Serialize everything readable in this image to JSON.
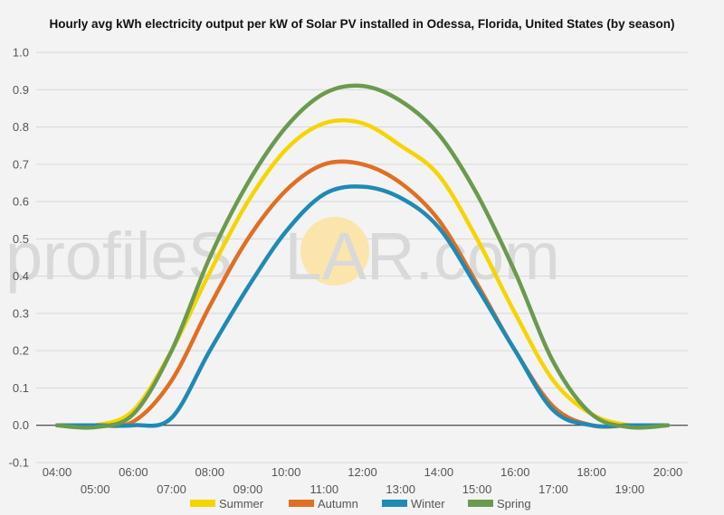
{
  "chart_data": {
    "type": "line",
    "title": "Hourly avg kWh electricity output per kW of Solar PV installed in Odessa, Florida, United States (by season)",
    "xlabel": "",
    "ylabel": "",
    "categories": [
      "04:00",
      "05:00",
      "06:00",
      "07:00",
      "08:00",
      "09:00",
      "10:00",
      "11:00",
      "12:00",
      "13:00",
      "14:00",
      "15:00",
      "16:00",
      "17:00",
      "18:00",
      "19:00",
      "20:00"
    ],
    "ylim": [
      -0.1,
      1.0
    ],
    "yticks": [
      "-0.1",
      "0.0",
      "0.1",
      "0.2",
      "0.3",
      "0.4",
      "0.5",
      "0.6",
      "0.7",
      "0.8",
      "0.9",
      "1.0"
    ],
    "grid": true,
    "legend_position": "bottom",
    "series": [
      {
        "name": "Summer",
        "color": "#f5d500",
        "values": [
          0.0,
          0.0,
          0.04,
          0.2,
          0.41,
          0.6,
          0.74,
          0.81,
          0.81,
          0.75,
          0.67,
          0.5,
          0.3,
          0.12,
          0.03,
          0.0,
          0.0
        ]
      },
      {
        "name": "Autumn",
        "color": "#e06f23",
        "values": [
          0.0,
          0.0,
          0.01,
          0.12,
          0.32,
          0.5,
          0.63,
          0.7,
          0.7,
          0.65,
          0.55,
          0.38,
          0.2,
          0.05,
          0.0,
          0.0,
          0.0
        ]
      },
      {
        "name": "Winter",
        "color": "#1f8ab4",
        "values": [
          0.0,
          0.0,
          0.0,
          0.02,
          0.2,
          0.37,
          0.52,
          0.62,
          0.64,
          0.61,
          0.53,
          0.37,
          0.2,
          0.04,
          0.0,
          0.0,
          0.0
        ]
      },
      {
        "name": "Spring",
        "color": "#6b9a4f",
        "values": [
          0.0,
          -0.005,
          0.03,
          0.2,
          0.45,
          0.65,
          0.8,
          0.89,
          0.91,
          0.87,
          0.78,
          0.62,
          0.41,
          0.17,
          0.03,
          -0.005,
          0.0
        ]
      }
    ]
  },
  "watermark": {
    "left": "profile",
    "mid": "S",
    "circle_letter": "O",
    "right": "LAR.com",
    "sun_color": "#fbe5ad"
  }
}
